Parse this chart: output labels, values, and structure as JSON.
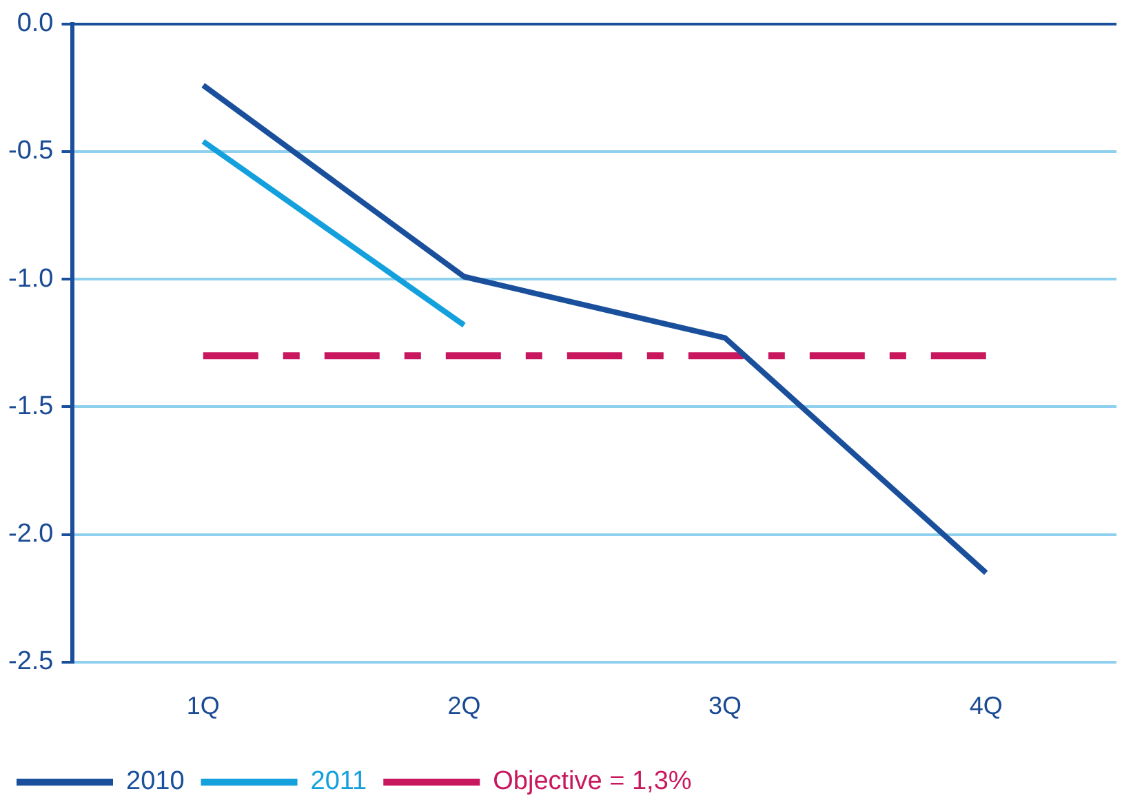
{
  "chart_data": {
    "type": "line",
    "categories": [
      "1Q",
      "2Q",
      "3Q",
      "4Q"
    ],
    "series": [
      {
        "name": "2010",
        "color": "#1a4f9c",
        "values": [
          -0.24,
          -0.99,
          -1.23,
          -2.15
        ]
      },
      {
        "name": "2011",
        "color": "#14a0dc",
        "values": [
          -0.46,
          -1.18,
          null,
          null
        ]
      },
      {
        "name": "Objective = 1,3%",
        "color": "#c8175d",
        "values": [
          -1.3,
          -1.3,
          -1.3,
          -1.3
        ],
        "line_style": "dashed"
      }
    ],
    "ylim": [
      -2.5,
      0
    ],
    "yticks": [
      {
        "value": 0,
        "label": "0.0"
      },
      -0.5,
      {
        "value": -1,
        "label": "-1.0"
      },
      {
        "value": -1.5,
        "label": "-1.5"
      },
      {
        "value": -2,
        "label": "-2.0"
      },
      -2.5
    ],
    "grid": "y",
    "legend": "bottom",
    "marker": "none"
  }
}
